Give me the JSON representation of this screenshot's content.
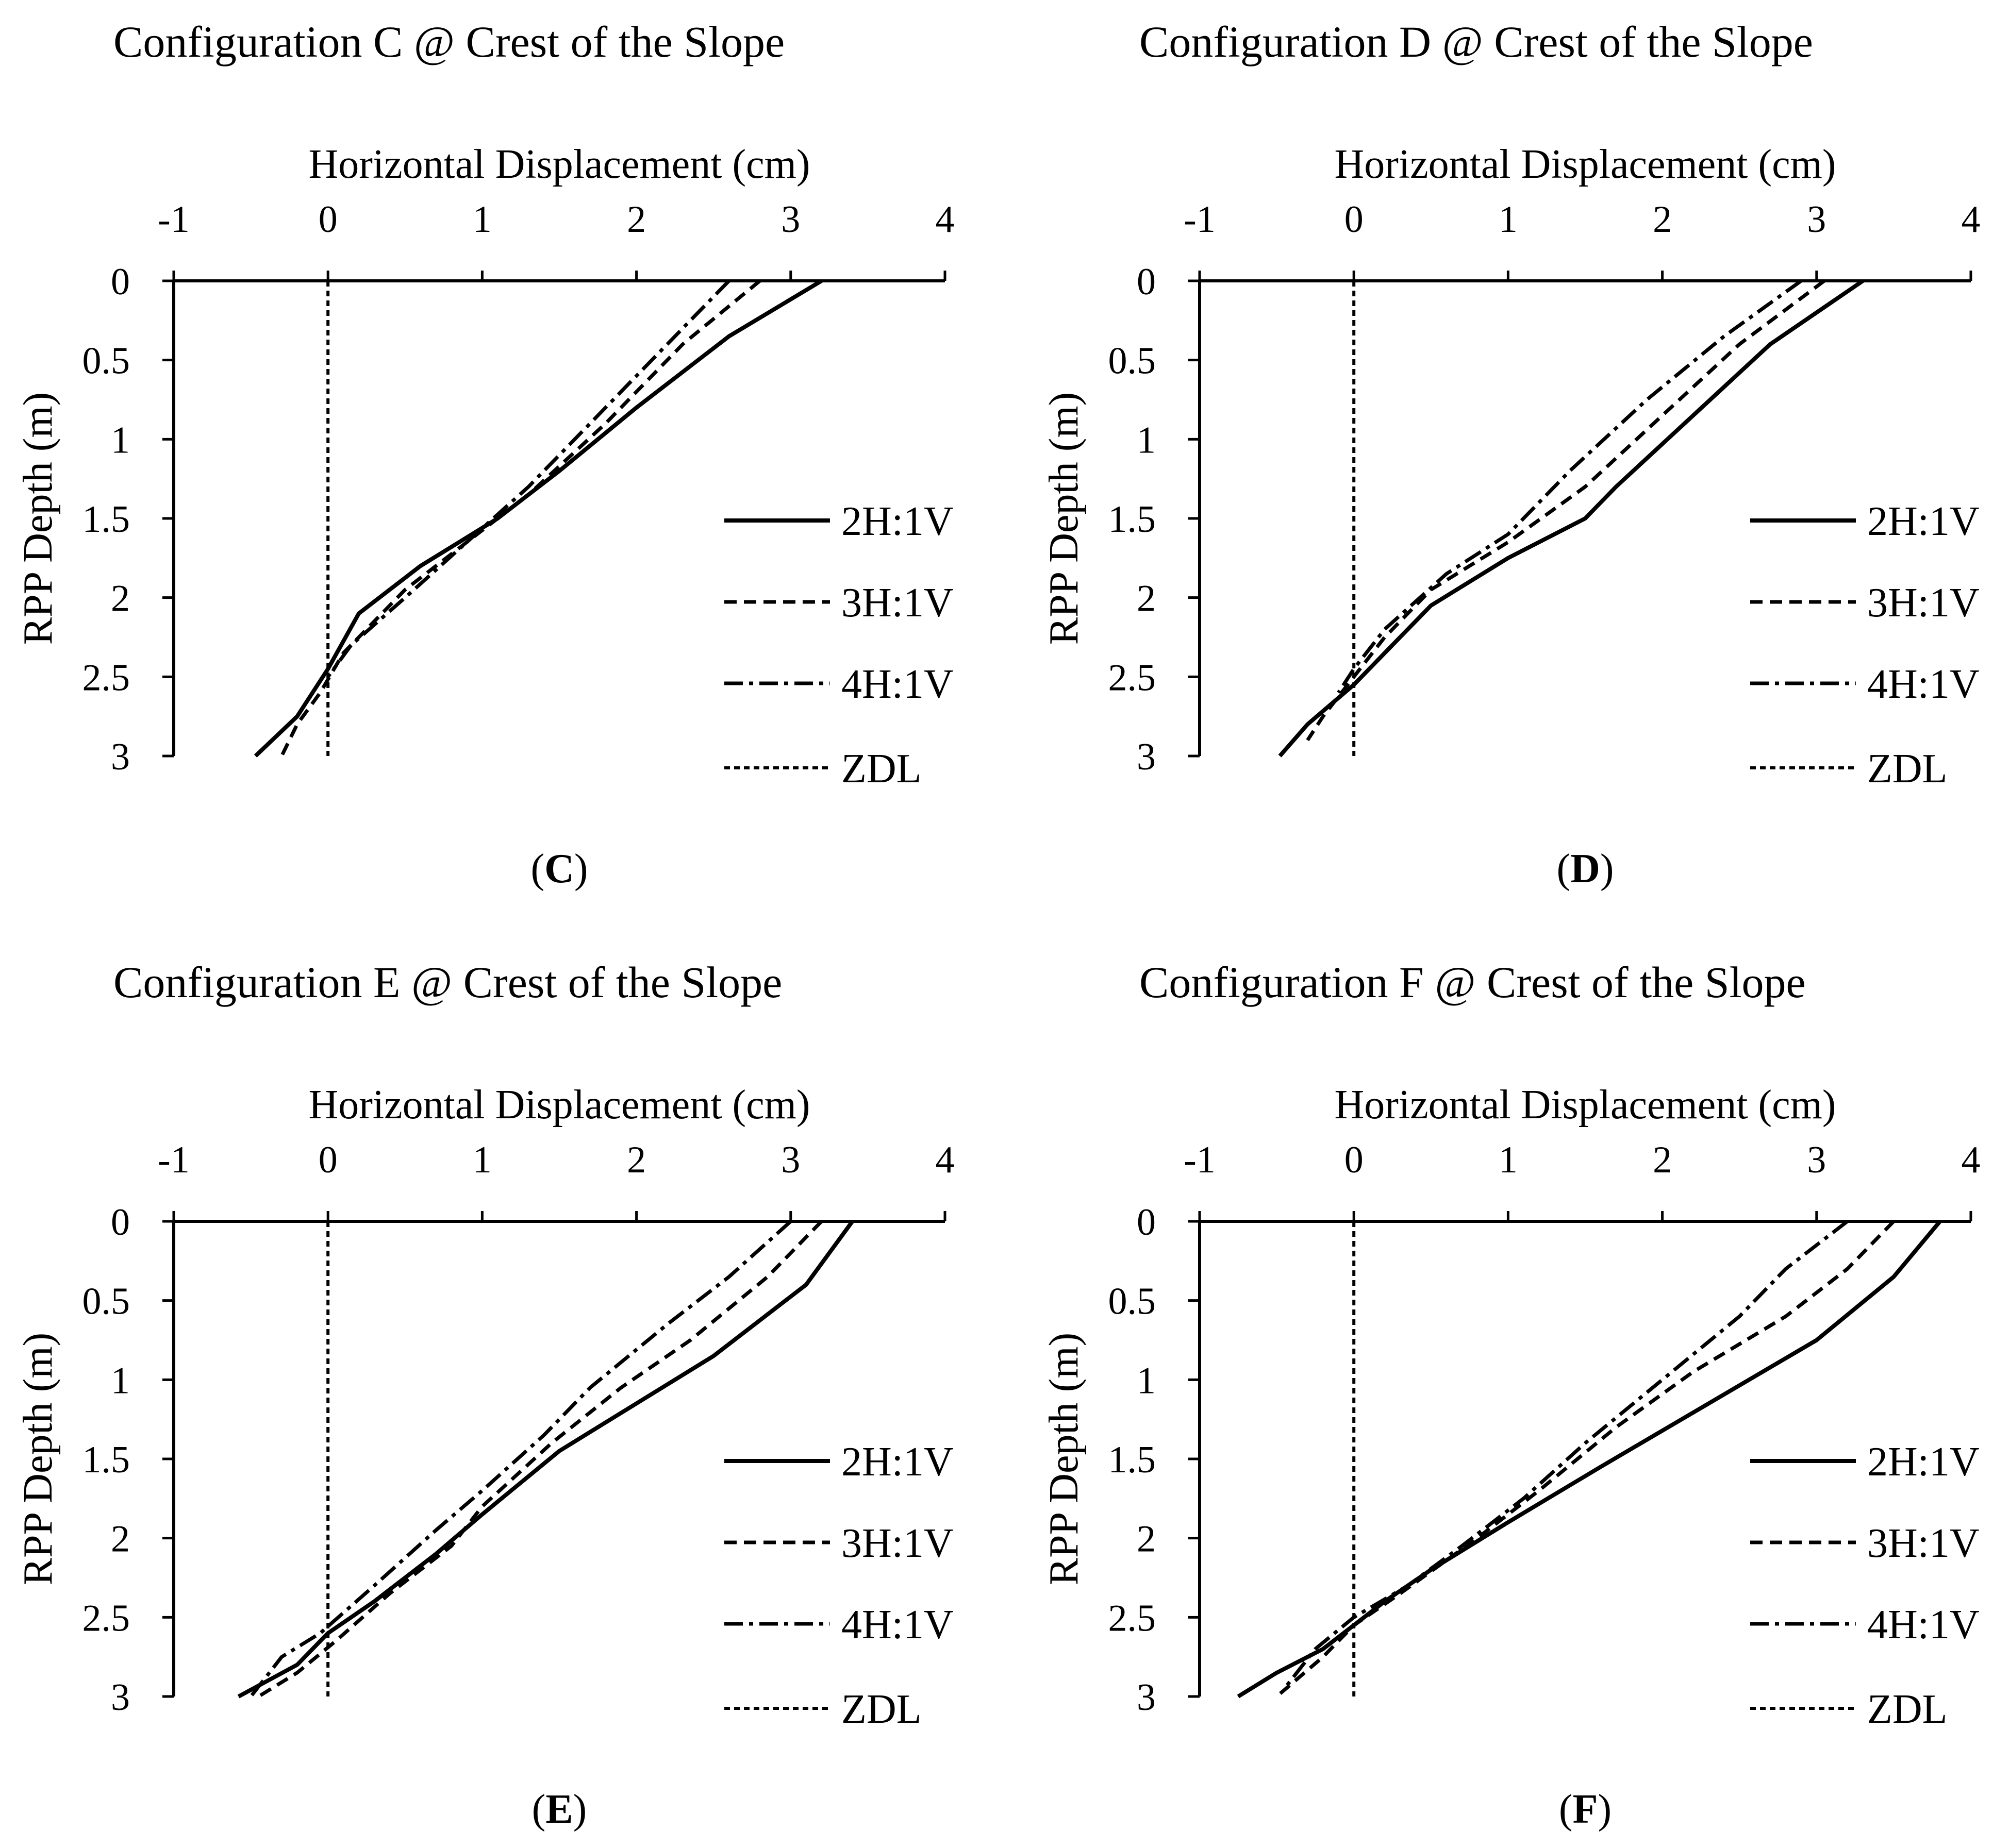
{
  "chart_data": [
    {
      "panel": "C",
      "type": "line",
      "title": "Configuration C @ Crest of the Slope",
      "xlabel": "Horizontal Displacement (cm)",
      "ylabel": "RPP Depth (m)",
      "caption_letter": "C",
      "xlim": [
        -1,
        4
      ],
      "ylim": [
        0,
        3
      ],
      "y_inverted": true,
      "x_axis_position": "top",
      "xticks": [
        "-1",
        "0",
        "1",
        "2",
        "3",
        "4"
      ],
      "yticks": [
        "0",
        "0.5",
        "1",
        "1.5",
        "2",
        "2.5",
        "3"
      ],
      "legend_position": "right",
      "grid": false,
      "series": [
        {
          "name": "2H:1V",
          "style": "solid",
          "points": [
            [
              3.2,
              0
            ],
            [
              2.6,
              0.35
            ],
            [
              2.0,
              0.8
            ],
            [
              1.5,
              1.2
            ],
            [
              1.1,
              1.5
            ],
            [
              0.6,
              1.8
            ],
            [
              0.2,
              2.1
            ],
            [
              0.0,
              2.45
            ],
            [
              -0.2,
              2.75
            ],
            [
              -0.47,
              3.0
            ]
          ]
        },
        {
          "name": "3H:1V",
          "style": "dash",
          "points": [
            [
              2.8,
              0
            ],
            [
              2.3,
              0.4
            ],
            [
              1.8,
              0.9
            ],
            [
              1.3,
              1.35
            ],
            [
              0.9,
              1.65
            ],
            [
              0.5,
              1.95
            ],
            [
              0.1,
              2.35
            ],
            [
              -0.05,
              2.6
            ],
            [
              -0.2,
              2.8
            ],
            [
              -0.3,
              3.0
            ]
          ]
        },
        {
          "name": "4H:1V",
          "style": "dashdot",
          "points": [
            [
              2.6,
              0
            ],
            [
              2.2,
              0.4
            ],
            [
              1.7,
              0.9
            ],
            [
              1.3,
              1.3
            ],
            [
              0.9,
              1.65
            ],
            [
              0.5,
              2.0
            ],
            [
              0.15,
              2.3
            ],
            [
              0.0,
              2.5
            ]
          ]
        },
        {
          "name": "ZDL",
          "style": "dot",
          "points": [
            [
              0,
              0
            ],
            [
              0,
              3
            ]
          ]
        }
      ]
    },
    {
      "panel": "D",
      "type": "line",
      "title": "Configuration D @ Crest of the Slope",
      "xlabel": "Horizontal Displacement (cm)",
      "ylabel": "RPP Depth (m)",
      "caption_letter": "D",
      "xlim": [
        -1,
        4
      ],
      "ylim": [
        0,
        3
      ],
      "y_inverted": true,
      "x_axis_position": "top",
      "xticks": [
        "-1",
        "0",
        "1",
        "2",
        "3",
        "4"
      ],
      "yticks": [
        "0",
        "0.5",
        "1",
        "1.5",
        "2",
        "2.5",
        "3"
      ],
      "legend_position": "right",
      "grid": false,
      "series": [
        {
          "name": "2H:1V",
          "style": "solid",
          "points": [
            [
              3.3,
              0
            ],
            [
              2.7,
              0.4
            ],
            [
              2.2,
              0.85
            ],
            [
              1.7,
              1.3
            ],
            [
              1.5,
              1.5
            ],
            [
              1.0,
              1.75
            ],
            [
              0.5,
              2.05
            ],
            [
              0.2,
              2.35
            ],
            [
              0.0,
              2.55
            ],
            [
              -0.3,
              2.8
            ],
            [
              -0.48,
              3.0
            ]
          ]
        },
        {
          "name": "3H:1V",
          "style": "dash",
          "points": [
            [
              3.05,
              0
            ],
            [
              2.5,
              0.4
            ],
            [
              2.0,
              0.85
            ],
            [
              1.5,
              1.3
            ],
            [
              1.0,
              1.65
            ],
            [
              0.5,
              1.95
            ],
            [
              0.2,
              2.25
            ],
            [
              0.0,
              2.5
            ],
            [
              -0.2,
              2.75
            ],
            [
              -0.3,
              2.9
            ]
          ]
        },
        {
          "name": "4H:1V",
          "style": "dashdot",
          "points": [
            [
              2.9,
              0
            ],
            [
              2.4,
              0.35
            ],
            [
              1.9,
              0.75
            ],
            [
              1.4,
              1.2
            ],
            [
              1.0,
              1.6
            ],
            [
              0.6,
              1.85
            ],
            [
              0.2,
              2.2
            ],
            [
              0.0,
              2.45
            ],
            [
              -0.1,
              2.6
            ]
          ]
        },
        {
          "name": "ZDL",
          "style": "dot",
          "points": [
            [
              0,
              0
            ],
            [
              0,
              3
            ]
          ]
        }
      ]
    },
    {
      "panel": "E",
      "type": "line",
      "title": "Configuration E @ Crest of the Slope",
      "xlabel": "Horizontal Displacement (cm)",
      "ylabel": "RPP Depth (m)",
      "caption_letter": "E",
      "xlim": [
        -1,
        4
      ],
      "ylim": [
        0,
        3
      ],
      "y_inverted": true,
      "x_axis_position": "top",
      "xticks": [
        "-1",
        "0",
        "1",
        "2",
        "3",
        "4"
      ],
      "yticks": [
        "0",
        "0.5",
        "1",
        "1.5",
        "2",
        "2.5",
        "3"
      ],
      "legend_position": "right",
      "grid": false,
      "series": [
        {
          "name": "2H:1V",
          "style": "solid",
          "points": [
            [
              3.4,
              0
            ],
            [
              3.1,
              0.4
            ],
            [
              2.5,
              0.85
            ],
            [
              2.0,
              1.15
            ],
            [
              1.5,
              1.45
            ],
            [
              1.0,
              1.85
            ],
            [
              0.7,
              2.1
            ],
            [
              0.3,
              2.4
            ],
            [
              0.0,
              2.6
            ],
            [
              -0.2,
              2.8
            ],
            [
              -0.58,
              3.0
            ]
          ]
        },
        {
          "name": "3H:1V",
          "style": "dash",
          "points": [
            [
              3.2,
              0
            ],
            [
              2.85,
              0.35
            ],
            [
              2.35,
              0.75
            ],
            [
              1.9,
              1.05
            ],
            [
              1.45,
              1.4
            ],
            [
              1.0,
              1.8
            ],
            [
              0.8,
              2.05
            ],
            [
              0.4,
              2.35
            ],
            [
              0.05,
              2.65
            ],
            [
              -0.2,
              2.85
            ],
            [
              -0.45,
              3.0
            ]
          ]
        },
        {
          "name": "4H:1V",
          "style": "dashdot",
          "points": [
            [
              3.0,
              0
            ],
            [
              2.6,
              0.35
            ],
            [
              2.2,
              0.65
            ],
            [
              1.7,
              1.05
            ],
            [
              1.4,
              1.35
            ],
            [
              1.0,
              1.7
            ],
            [
              0.7,
              1.95
            ],
            [
              0.3,
              2.3
            ],
            [
              -0.05,
              2.6
            ],
            [
              -0.3,
              2.75
            ],
            [
              -0.5,
              3.0
            ]
          ]
        },
        {
          "name": "ZDL",
          "style": "dot",
          "points": [
            [
              0,
              0
            ],
            [
              0,
              3
            ]
          ]
        }
      ]
    },
    {
      "panel": "F",
      "type": "line",
      "title": "Configuration F @ Crest of the Slope",
      "xlabel": "Horizontal Displacement (cm)",
      "ylabel": "RPP Depth (m)",
      "caption_letter": "F",
      "xlim": [
        -1,
        4
      ],
      "ylim": [
        0,
        3
      ],
      "y_inverted": true,
      "x_axis_position": "top",
      "xticks": [
        "-1",
        "0",
        "1",
        "2",
        "3",
        "4"
      ],
      "yticks": [
        "0",
        "0.5",
        "1",
        "1.5",
        "2",
        "2.5",
        "3"
      ],
      "legend_position": "right",
      "grid": false,
      "series": [
        {
          "name": "2H:1V",
          "style": "solid",
          "points": [
            [
              3.8,
              0
            ],
            [
              3.5,
              0.35
            ],
            [
              3.0,
              0.75
            ],
            [
              2.3,
              1.15
            ],
            [
              1.6,
              1.55
            ],
            [
              1.0,
              1.9
            ],
            [
              0.5,
              2.2
            ],
            [
              0.2,
              2.4
            ],
            [
              0.0,
              2.55
            ],
            [
              -0.2,
              2.7
            ],
            [
              -0.5,
              2.85
            ],
            [
              -0.75,
              3.0
            ]
          ]
        },
        {
          "name": "3H:1V",
          "style": "dash",
          "points": [
            [
              3.5,
              0
            ],
            [
              3.2,
              0.3
            ],
            [
              2.8,
              0.6
            ],
            [
              2.2,
              0.95
            ],
            [
              1.7,
              1.3
            ],
            [
              1.2,
              1.7
            ],
            [
              0.8,
              2.0
            ],
            [
              0.3,
              2.35
            ],
            [
              0.0,
              2.55
            ],
            [
              -0.2,
              2.75
            ],
            [
              -0.5,
              3.0
            ]
          ]
        },
        {
          "name": "4H:1V",
          "style": "dashdot",
          "points": [
            [
              3.2,
              0
            ],
            [
              2.8,
              0.3
            ],
            [
              2.5,
              0.6
            ],
            [
              2.0,
              1.0
            ],
            [
              1.5,
              1.4
            ],
            [
              1.1,
              1.75
            ],
            [
              0.7,
              2.05
            ],
            [
              0.35,
              2.3
            ],
            [
              0.0,
              2.5
            ],
            [
              -0.25,
              2.7
            ],
            [
              -0.45,
              2.95
            ]
          ]
        },
        {
          "name": "ZDL",
          "style": "dot",
          "points": [
            [
              0,
              0
            ],
            [
              0,
              3
            ]
          ]
        }
      ]
    }
  ]
}
